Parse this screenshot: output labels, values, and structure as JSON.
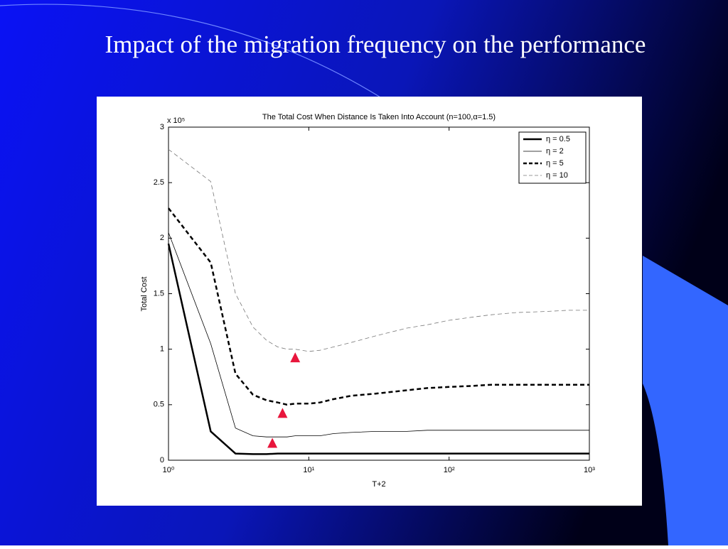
{
  "slide_title": "Impact of the migration frequency on the performance",
  "chart_data": {
    "type": "line",
    "title": "The Total Cost When Distance Is Taken Into Account (n=100,α=1.5)",
    "x_label": "T+2",
    "y_label": "Total Cost",
    "y_multiplier": "x 10⁵",
    "x_scale": "log",
    "x": [
      1,
      2,
      3,
      4,
      5,
      6,
      7,
      8,
      10,
      12,
      15,
      20,
      30,
      50,
      70,
      100,
      150,
      200,
      300,
      500,
      700,
      1000
    ],
    "series": [
      {
        "name": "η = 0.5",
        "color": "#000000",
        "line_style": "solid",
        "line_width": 2.5,
        "values": [
          1.95,
          0.26,
          0.06,
          0.055,
          0.055,
          0.06,
          0.06,
          0.06,
          0.06,
          0.06,
          0.06,
          0.06,
          0.06,
          0.06,
          0.06,
          0.06,
          0.06,
          0.06,
          0.06,
          0.06,
          0.06,
          0.06
        ]
      },
      {
        "name": "η = 2",
        "color": "#000000",
        "line_style": "solid",
        "line_width": 0.8,
        "values": [
          2.05,
          1.05,
          0.29,
          0.22,
          0.21,
          0.21,
          0.21,
          0.22,
          0.22,
          0.22,
          0.24,
          0.25,
          0.26,
          0.26,
          0.27,
          0.27,
          0.27,
          0.27,
          0.27,
          0.27,
          0.27,
          0.27
        ]
      },
      {
        "name": "η = 5",
        "color": "#000000",
        "line_style": "dashed",
        "line_width": 2.5,
        "values": [
          2.27,
          1.78,
          0.78,
          0.59,
          0.54,
          0.52,
          0.5,
          0.51,
          0.51,
          0.52,
          0.55,
          0.58,
          0.6,
          0.63,
          0.65,
          0.66,
          0.67,
          0.68,
          0.68,
          0.68,
          0.68,
          0.68
        ]
      },
      {
        "name": "η = 10",
        "color": "#777777",
        "line_style": "dashed",
        "line_width": 0.8,
        "values": [
          2.8,
          2.51,
          1.5,
          1.2,
          1.08,
          1.02,
          1.0,
          1.0,
          0.98,
          0.99,
          1.02,
          1.06,
          1.12,
          1.19,
          1.22,
          1.26,
          1.29,
          1.31,
          1.33,
          1.34,
          1.35,
          1.35
        ]
      }
    ],
    "markers": {
      "x": [
        8,
        6.5,
        5.5
      ],
      "y": [
        0.92,
        0.42,
        0.15
      ],
      "color": "#e8163c"
    },
    "xlim": [
      1,
      1000
    ],
    "xticks": [
      {
        "value": 1,
        "label": "10⁰"
      },
      {
        "value": 10,
        "label": "10¹"
      },
      {
        "value": 100,
        "label": "10²"
      },
      {
        "value": 1000,
        "label": "10³"
      }
    ],
    "ylim": [
      0,
      3
    ],
    "yticks": [
      0,
      0.5,
      1,
      1.5,
      2,
      2.5,
      3
    ],
    "legend": "top-right"
  }
}
